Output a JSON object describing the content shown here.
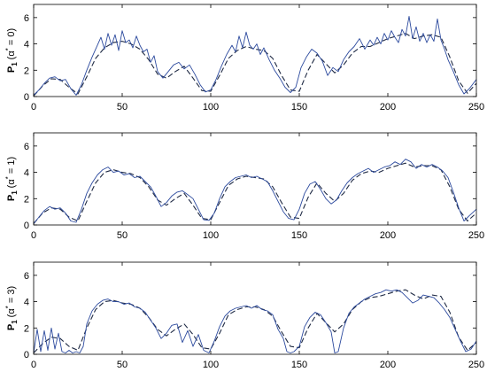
{
  "chart_data": [
    {
      "type": "line",
      "ylabel": {
        "main": "P",
        "sub": "1",
        "paren": "(α",
        "sup": "*",
        "rest": " = 0)"
      },
      "xlim": [
        0,
        250
      ],
      "ylim": [
        0,
        7
      ],
      "xticks": [
        0,
        50,
        100,
        150,
        200,
        250
      ],
      "yticks": [
        0,
        2,
        4,
        6
      ],
      "xtick_labels": [
        "0",
        "50",
        "100",
        "150",
        "200",
        "250"
      ],
      "ytick_labels": [
        "0",
        "2",
        "4",
        "6"
      ],
      "grid": false,
      "series": [
        {
          "style": "dashed",
          "color": "#1f2a44",
          "x": [
            0,
            5,
            10,
            15,
            20,
            25,
            30,
            35,
            40,
            45,
            50,
            55,
            60,
            65,
            70,
            75,
            80,
            85,
            90,
            95,
            100,
            105,
            110,
            115,
            120,
            125,
            130,
            135,
            140,
            145,
            150,
            155,
            160,
            165,
            170,
            175,
            180,
            185,
            190,
            195,
            200,
            205,
            210,
            215,
            220,
            225,
            230,
            235,
            240,
            245,
            250
          ],
          "y": [
            0.05,
            0.8,
            1.35,
            1.3,
            0.7,
            0.2,
            1.5,
            2.9,
            3.7,
            4.1,
            4.2,
            4.0,
            3.6,
            2.8,
            1.7,
            1.4,
            1.9,
            2.3,
            1.4,
            0.45,
            0.4,
            1.6,
            2.9,
            3.5,
            3.8,
            3.6,
            3.5,
            2.9,
            1.6,
            0.5,
            0.4,
            2.0,
            3.2,
            2.5,
            1.8,
            2.4,
            3.3,
            3.8,
            3.8,
            4.1,
            4.4,
            4.6,
            4.8,
            4.4,
            4.6,
            4.7,
            4.5,
            3.0,
            1.2,
            0.25,
            1.0
          ]
        },
        {
          "style": "solid",
          "color": "#2c4a9e",
          "x": [
            0,
            3,
            6,
            9,
            12,
            15,
            18,
            21,
            24,
            27,
            30,
            33,
            36,
            38,
            40,
            42,
            44,
            46,
            48,
            50,
            52,
            54,
            56,
            58,
            60,
            62,
            64,
            66,
            68,
            70,
            73,
            76,
            79,
            82,
            85,
            88,
            91,
            94,
            97,
            100,
            103,
            106,
            109,
            112,
            114,
            116,
            118,
            120,
            122,
            124,
            126,
            128,
            130,
            133,
            136,
            139,
            142,
            145,
            148,
            151,
            154,
            157,
            160,
            163,
            166,
            169,
            172,
            175,
            178,
            181,
            184,
            187,
            190,
            192,
            194,
            196,
            198,
            200,
            202,
            204,
            206,
            208,
            210,
            212,
            214,
            216,
            218,
            220,
            222,
            224,
            226,
            228,
            230,
            232,
            234,
            237,
            240,
            243,
            246,
            250
          ],
          "y": [
            0.1,
            0.5,
            1.0,
            1.4,
            1.5,
            1.2,
            1.3,
            0.6,
            0.1,
            0.9,
            2.0,
            3.0,
            3.9,
            4.5,
            3.6,
            4.8,
            3.9,
            4.7,
            3.5,
            5.0,
            4.1,
            4.3,
            3.7,
            4.6,
            3.9,
            3.4,
            3.6,
            2.6,
            3.1,
            1.9,
            1.4,
            1.9,
            2.4,
            2.6,
            2.1,
            2.4,
            1.7,
            0.9,
            0.35,
            0.5,
            1.3,
            2.3,
            3.2,
            3.9,
            3.4,
            4.6,
            3.7,
            4.9,
            3.9,
            3.6,
            4.0,
            3.2,
            3.7,
            2.8,
            2.0,
            1.4,
            0.7,
            0.3,
            0.7,
            2.2,
            3.0,
            3.6,
            3.3,
            2.7,
            1.6,
            2.2,
            1.9,
            2.8,
            3.4,
            3.8,
            4.4,
            3.6,
            4.3,
            3.9,
            4.5,
            4.0,
            4.8,
            4.3,
            5.0,
            4.5,
            4.1,
            5.1,
            4.6,
            6.1,
            4.4,
            5.3,
            4.2,
            4.8,
            4.1,
            4.7,
            4.2,
            5.9,
            4.3,
            3.6,
            2.8,
            1.9,
            0.9,
            0.2,
            0.6,
            1.3
          ]
        }
      ]
    },
    {
      "type": "line",
      "ylabel": {
        "main": "P",
        "sub": "1",
        "paren": "(α",
        "sup": "*",
        "rest": " = 1)"
      },
      "xlim": [
        0,
        250
      ],
      "ylim": [
        0,
        7
      ],
      "xticks": [
        0,
        50,
        100,
        150,
        200,
        250
      ],
      "yticks": [
        0,
        2,
        4,
        6
      ],
      "xtick_labels": [
        "0",
        "50",
        "100",
        "150",
        "200",
        "250"
      ],
      "ytick_labels": [
        "0",
        "2",
        "4",
        "6"
      ],
      "grid": false,
      "series": [
        {
          "style": "dashed",
          "color": "#1f2a44",
          "x": [
            0,
            5,
            10,
            15,
            20,
            25,
            30,
            35,
            40,
            45,
            50,
            55,
            60,
            65,
            70,
            75,
            80,
            85,
            90,
            95,
            100,
            105,
            110,
            115,
            120,
            125,
            130,
            135,
            140,
            145,
            150,
            155,
            160,
            165,
            170,
            175,
            180,
            185,
            190,
            195,
            200,
            205,
            210,
            215,
            220,
            225,
            230,
            235,
            240,
            245,
            250
          ],
          "y": [
            0.1,
            0.9,
            1.3,
            1.2,
            0.6,
            0.3,
            1.8,
            3.2,
            4.0,
            4.2,
            4.0,
            3.9,
            3.6,
            2.9,
            1.9,
            1.5,
            2.0,
            2.4,
            1.5,
            0.5,
            0.4,
            1.7,
            3.0,
            3.5,
            3.7,
            3.6,
            3.5,
            2.9,
            1.7,
            0.6,
            0.5,
            2.1,
            3.2,
            2.4,
            1.8,
            2.4,
            3.4,
            3.9,
            4.1,
            4.0,
            4.3,
            4.5,
            4.7,
            4.4,
            4.5,
            4.5,
            4.2,
            2.9,
            1.2,
            0.3,
            0.9
          ]
        },
        {
          "style": "solid",
          "color": "#2c4a9e",
          "x": [
            0,
            3,
            6,
            9,
            12,
            15,
            18,
            21,
            24,
            27,
            30,
            33,
            36,
            39,
            42,
            45,
            48,
            51,
            54,
            57,
            60,
            63,
            66,
            69,
            72,
            75,
            78,
            81,
            84,
            87,
            90,
            93,
            96,
            99,
            102,
            105,
            108,
            111,
            114,
            117,
            120,
            123,
            126,
            129,
            132,
            135,
            138,
            141,
            144,
            147,
            150,
            153,
            156,
            159,
            162,
            165,
            168,
            171,
            174,
            177,
            180,
            183,
            186,
            189,
            192,
            195,
            198,
            201,
            204,
            207,
            210,
            213,
            216,
            219,
            222,
            225,
            228,
            231,
            234,
            237,
            240,
            243,
            246,
            250
          ],
          "y": [
            0.1,
            0.6,
            1.1,
            1.4,
            1.2,
            1.3,
            0.9,
            0.3,
            0.2,
            1.2,
            2.4,
            3.2,
            3.8,
            4.2,
            4.4,
            4.0,
            4.1,
            3.8,
            3.9,
            3.6,
            3.7,
            3.3,
            2.9,
            2.2,
            1.4,
            1.7,
            2.2,
            2.5,
            2.6,
            2.3,
            2.0,
            1.2,
            0.4,
            0.35,
            0.9,
            2.0,
            2.9,
            3.3,
            3.6,
            3.7,
            3.8,
            3.6,
            3.7,
            3.5,
            3.3,
            2.6,
            1.8,
            1.0,
            0.5,
            0.4,
            1.2,
            2.4,
            3.1,
            3.3,
            2.7,
            2.0,
            1.6,
            1.9,
            2.6,
            3.2,
            3.6,
            3.9,
            4.1,
            4.3,
            4.0,
            4.2,
            4.4,
            4.5,
            4.8,
            4.6,
            5.0,
            4.8,
            4.3,
            4.6,
            4.4,
            4.6,
            4.4,
            4.1,
            3.6,
            2.5,
            1.3,
            0.3,
            0.7,
            1.2
          ]
        }
      ]
    },
    {
      "type": "line",
      "ylabel": {
        "main": "P",
        "sub": "1",
        "paren": "(α",
        "sup": "*",
        "rest": " = 3)"
      },
      "xlim": [
        0,
        250
      ],
      "ylim": [
        0,
        7
      ],
      "xticks": [
        0,
        50,
        100,
        150,
        200,
        250
      ],
      "yticks": [
        0,
        2,
        4,
        6
      ],
      "xtick_labels": [
        "0",
        "50",
        "100",
        "150",
        "200",
        "250"
      ],
      "ytick_labels": [
        "0",
        "2",
        "4",
        "6"
      ],
      "grid": false,
      "series": [
        {
          "style": "dashed",
          "color": "#1f2a44",
          "x": [
            0,
            5,
            10,
            15,
            20,
            25,
            30,
            35,
            40,
            45,
            50,
            55,
            60,
            65,
            70,
            75,
            80,
            85,
            90,
            95,
            100,
            105,
            110,
            115,
            120,
            125,
            130,
            135,
            140,
            145,
            150,
            155,
            160,
            165,
            170,
            175,
            180,
            185,
            190,
            195,
            200,
            205,
            210,
            215,
            220,
            225,
            230,
            235,
            240,
            245,
            250
          ],
          "y": [
            0.1,
            0.8,
            1.3,
            1.2,
            0.6,
            0.3,
            2.0,
            3.4,
            4.0,
            4.1,
            3.9,
            3.8,
            3.5,
            2.8,
            1.9,
            1.4,
            1.9,
            2.3,
            1.5,
            0.5,
            0.4,
            1.6,
            3.0,
            3.4,
            3.6,
            3.6,
            3.4,
            2.9,
            1.7,
            0.6,
            0.5,
            2.0,
            3.1,
            2.4,
            1.7,
            2.3,
            3.4,
            4.0,
            4.3,
            4.4,
            4.6,
            4.8,
            4.9,
            4.5,
            4.2,
            4.5,
            4.4,
            3.2,
            1.3,
            0.3,
            0.9
          ]
        },
        {
          "style": "solid",
          "color": "#2c4a9e",
          "x": [
            0,
            2,
            4,
            6,
            8,
            10,
            12,
            14,
            16,
            18,
            20,
            22,
            24,
            26,
            28,
            30,
            33,
            36,
            39,
            42,
            45,
            48,
            51,
            54,
            57,
            60,
            63,
            66,
            69,
            72,
            75,
            78,
            81,
            84,
            87,
            90,
            93,
            96,
            99,
            102,
            105,
            108,
            111,
            114,
            117,
            120,
            123,
            126,
            129,
            132,
            135,
            138,
            141,
            143,
            145,
            147,
            150,
            153,
            156,
            159,
            162,
            165,
            168,
            170,
            172,
            175,
            178,
            181,
            184,
            187,
            190,
            193,
            196,
            199,
            202,
            205,
            208,
            211,
            214,
            217,
            220,
            223,
            226,
            229,
            232,
            235,
            238,
            241,
            244,
            247,
            250
          ],
          "y": [
            0.1,
            1.9,
            0.2,
            1.8,
            0.3,
            2.0,
            0.4,
            1.6,
            0.2,
            0.1,
            0.3,
            0.1,
            0.2,
            0.1,
            0.6,
            2.3,
            3.3,
            3.8,
            4.1,
            4.2,
            4.0,
            4.0,
            3.8,
            3.9,
            3.6,
            3.5,
            3.2,
            2.6,
            2.0,
            1.2,
            1.6,
            2.2,
            2.3,
            0.9,
            1.8,
            0.6,
            1.5,
            0.3,
            0.1,
            1.0,
            2.1,
            2.9,
            3.3,
            3.5,
            3.6,
            3.7,
            3.5,
            3.7,
            3.4,
            3.3,
            3.0,
            1.9,
            1.2,
            0.2,
            0.1,
            0.2,
            0.6,
            2.1,
            2.8,
            3.2,
            3.0,
            2.4,
            1.7,
            0.1,
            0.2,
            2.0,
            3.1,
            3.6,
            3.9,
            4.2,
            4.4,
            4.6,
            4.7,
            4.9,
            4.8,
            4.9,
            4.7,
            4.3,
            3.9,
            4.1,
            4.5,
            4.4,
            4.3,
            3.9,
            3.4,
            2.8,
            1.9,
            1.0,
            0.2,
            0.4,
            1.0
          ]
        }
      ]
    }
  ]
}
